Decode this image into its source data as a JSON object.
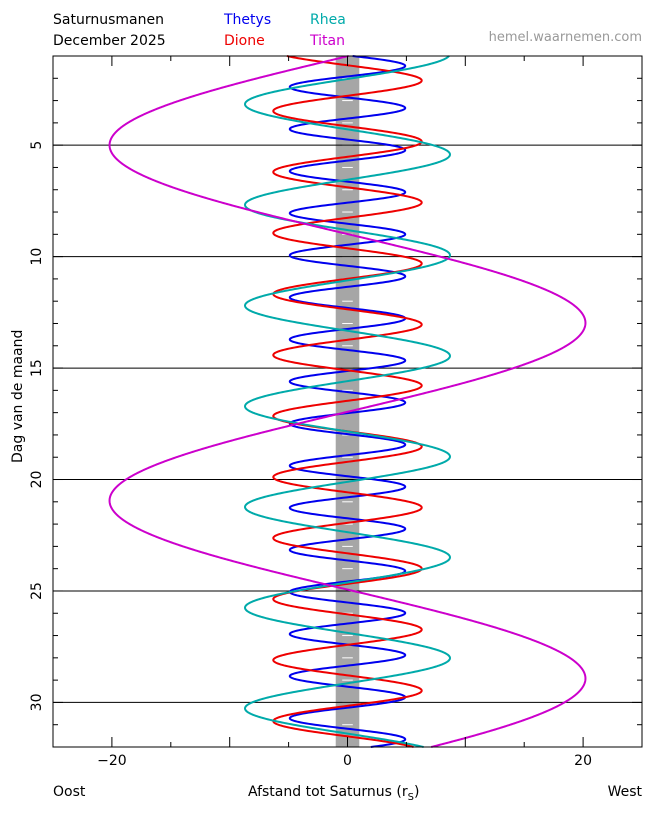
{
  "header": {
    "title": "Saturnusmanen",
    "date": "December  2025",
    "site": "hemel.waarnemen.com"
  },
  "legend": [
    {
      "name": "Thetys",
      "color": "#0000ee"
    },
    {
      "name": "Dione",
      "color": "#ee0000"
    },
    {
      "name": "Rhea",
      "color": "#00aaaa"
    },
    {
      "name": "Titan",
      "color": "#cc00cc"
    }
  ],
  "footer": {
    "left": "Oost",
    "center": "Afstand tot Saturnus (r",
    "center_sub": "S",
    "center_end": ")",
    "right": "West"
  },
  "chart_data": {
    "type": "line",
    "title": "Saturnusmanen",
    "ylabel": "Dag van de maand",
    "xlabel": "Afstand tot Saturnus (rS)",
    "xlim": [
      -25,
      25
    ],
    "ylim": [
      1.0,
      32.0
    ],
    "y_inverted": true,
    "xticks": [
      -20,
      0,
      20
    ],
    "xtick_labels": [
      "−20",
      "0",
      "20"
    ],
    "yticks": [
      5,
      10,
      15,
      20,
      25,
      30
    ],
    "week_lines": [
      5,
      10,
      15,
      20,
      25,
      30
    ],
    "saturn_band": [
      -1,
      1
    ],
    "grid": false,
    "series": [
      {
        "name": "Thetys",
        "color": "#0000ee",
        "amplitude": 4.9,
        "period_days": 1.888,
        "ref_day": 1.445,
        "ref_x": 4.9
      },
      {
        "name": "Dione",
        "color": "#ee0000",
        "amplitude": 6.3,
        "period_days": 2.737,
        "ref_day": 2.1,
        "ref_x": 6.3
      },
      {
        "name": "Rhea",
        "color": "#00aaaa",
        "amplitude": 8.7,
        "period_days": 4.518,
        "ref_day": 5.42,
        "ref_x": 8.7
      },
      {
        "name": "Titan",
        "color": "#cc00cc",
        "amplitude": 20.2,
        "period_days": 15.95,
        "ref_day": 5.0,
        "ref_x": -20.2
      }
    ]
  }
}
